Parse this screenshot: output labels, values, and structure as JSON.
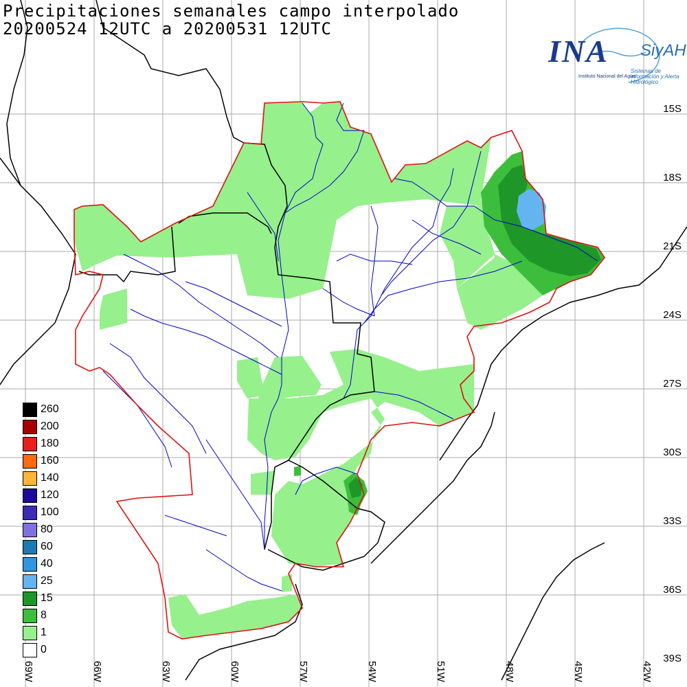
{
  "title": {
    "line1": "Precipitaciones semanales campo interpolado",
    "line2": "20200524 12UTC a 20200531 12UTC"
  },
  "logo": {
    "name": "INA",
    "product": "SiyAH",
    "subtitle1": "Instituto Nacional del Agua",
    "subtitle2": "Sistemas de información y Alerta Hidrológico"
  },
  "lat_labels": [
    "15S",
    "18S",
    "21S",
    "24S",
    "27S",
    "30S",
    "33S",
    "36S",
    "39S"
  ],
  "lon_labels": [
    "69W",
    "66W",
    "63W",
    "60W",
    "57W",
    "54W",
    "51W",
    "48W",
    "45W",
    "42W"
  ],
  "legend": [
    {
      "label": "260",
      "color": "#000000"
    },
    {
      "label": "200",
      "color": "#a50000"
    },
    {
      "label": "180",
      "color": "#e8201c"
    },
    {
      "label": "160",
      "color": "#ff6a10"
    },
    {
      "label": "140",
      "color": "#ffb43c"
    },
    {
      "label": "120",
      "color": "#1e0a96"
    },
    {
      "label": "100",
      "color": "#3a2db4"
    },
    {
      "label": "80",
      "color": "#8070e0"
    },
    {
      "label": "60",
      "color": "#1e78b4"
    },
    {
      "label": "40",
      "color": "#3296dc"
    },
    {
      "label": "25",
      "color": "#64b4f0"
    },
    {
      "label": "15",
      "color": "#1e9628"
    },
    {
      "label": "8",
      "color": "#3cbe3c"
    },
    {
      "label": "1",
      "color": "#96f08c"
    },
    {
      "label": "0",
      "color": "#ffffff"
    }
  ],
  "colors": {
    "basin_outline": "#e01010",
    "rivers": "#0000c8",
    "borders": "#000000",
    "grid": "#aaaaaa"
  }
}
